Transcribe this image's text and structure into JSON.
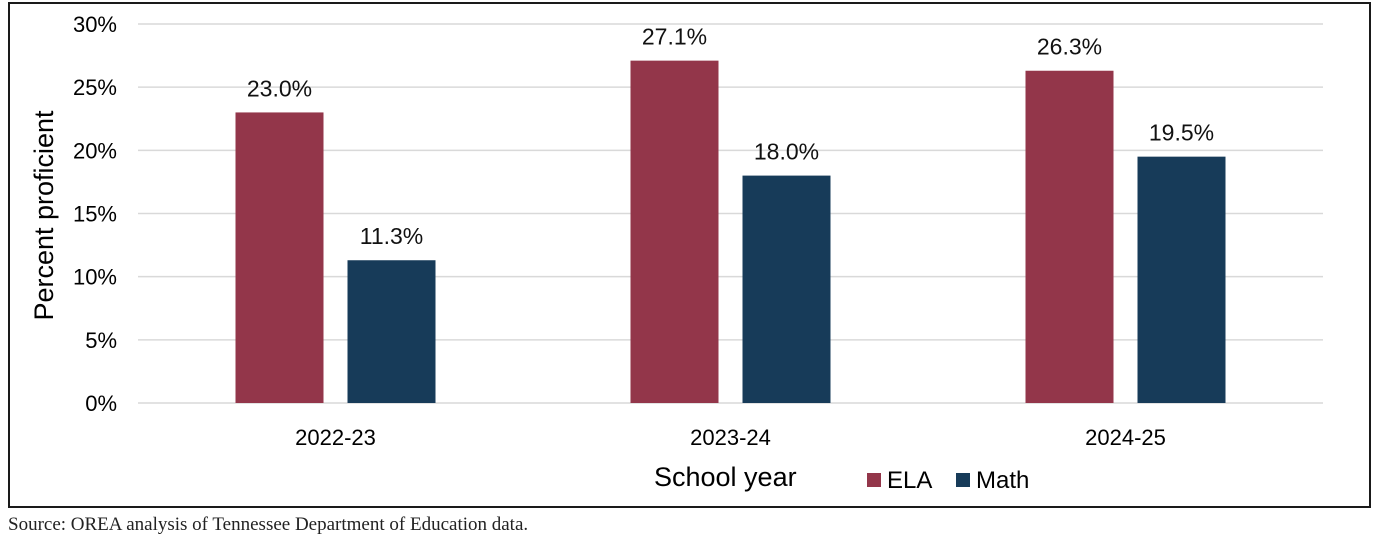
{
  "chart_data": {
    "type": "bar",
    "title": "",
    "categories": [
      "2022-23",
      "2023-24",
      "2024-25"
    ],
    "series": [
      {
        "name": "ELA",
        "values": [
          23.0,
          27.1,
          26.3
        ],
        "labels": [
          "23.0%",
          "27.1%",
          "26.3%"
        ],
        "color": "#93364a"
      },
      {
        "name": "Math",
        "values": [
          11.3,
          18.0,
          19.5
        ],
        "labels": [
          "11.3%",
          "18.0%",
          "19.5%"
        ],
        "color": "#173b59"
      }
    ],
    "xlabel": "School year",
    "ylabel": "Percent proficient",
    "ylim": [
      0,
      30
    ],
    "yticks": [
      {
        "value": 0,
        "label": "0%"
      },
      {
        "value": 5,
        "label": "5%"
      },
      {
        "value": 10,
        "label": "10%"
      },
      {
        "value": 15,
        "label": "15%"
      },
      {
        "value": 20,
        "label": "20%"
      },
      {
        "value": 25,
        "label": "25%"
      },
      {
        "value": 30,
        "label": "30%"
      }
    ],
    "grid": true,
    "legend_position": "bottom",
    "colors": {
      "gridline": "#d9d9d9",
      "text": "#000000"
    }
  },
  "source": "Source: OREA analysis of Tennessee Department of Education data."
}
